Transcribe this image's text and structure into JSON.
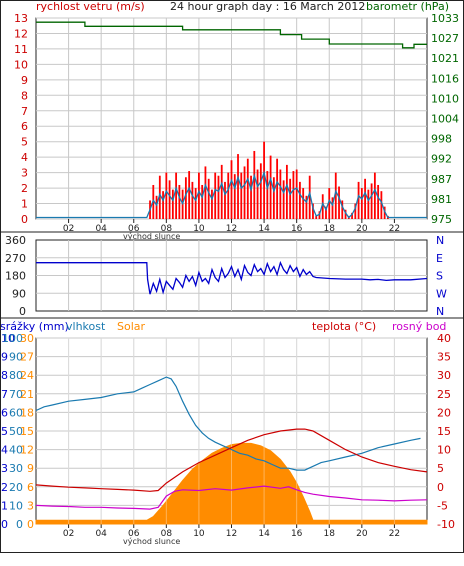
{
  "header": {
    "wind_speed_label": "rychlost vetru (m/s)",
    "graph_title": "24 hour graph day : 16 March 2012",
    "barometer_label": "barometr (hPa)"
  },
  "colors": {
    "wind_gust": "#ff0000",
    "wind_avg": "#1a7ab0",
    "pressure": "#006600",
    "direction": "#0000cc",
    "precip": "#0000cc",
    "humidity": "#1a7ab0",
    "solar": "#ff8c00",
    "temperature": "#cc0000",
    "dew_point": "#cc00cc",
    "axis_blue": "#0000cc",
    "axis_red": "#cc0000",
    "axis_green": "#006600"
  },
  "chart_data": [
    {
      "type": "line",
      "id": "wind_pressure",
      "title": "24 hour graph day : 16 March 2012",
      "x_tick_labels": [
        "02",
        "04",
        "06",
        "08",
        "10",
        "12",
        "14",
        "16",
        "18",
        "20",
        "22"
      ],
      "x_annotation": "východ slunce",
      "xlim": [
        0,
        24
      ],
      "y_left": {
        "label": "rychlost vetru (m/s)",
        "ticks": [
          "0",
          "1",
          "2",
          "3",
          "4",
          "5",
          "6",
          "7",
          "8",
          "9",
          "10",
          "11",
          "12",
          "13"
        ],
        "lim": [
          0,
          13
        ]
      },
      "y_right": {
        "label": "barometr (hPa)",
        "ticks": [
          "975",
          "981",
          "987",
          "992",
          "998",
          "1004",
          "1010",
          "1016",
          "1021",
          "1027",
          "1033"
        ],
        "lim": [
          975,
          1033
        ]
      },
      "series": [
        {
          "role": "wind_gust",
          "x": [
            6.8,
            7.0,
            7.2,
            7.4,
            7.6,
            7.8,
            8.0,
            8.2,
            8.4,
            8.6,
            8.8,
            9.0,
            9.2,
            9.4,
            9.6,
            9.8,
            10.0,
            10.2,
            10.4,
            10.6,
            10.8,
            11.0,
            11.2,
            11.4,
            11.6,
            11.8,
            12.0,
            12.2,
            12.4,
            12.6,
            12.8,
            13.0,
            13.2,
            13.4,
            13.6,
            13.8,
            14.0,
            14.2,
            14.4,
            14.6,
            14.8,
            15.0,
            15.2,
            15.4,
            15.6,
            15.8,
            16.0,
            16.2,
            16.4,
            16.6,
            16.8,
            17.0,
            17.2,
            17.4,
            17.6,
            17.8,
            18.0,
            18.2,
            18.4,
            18.6,
            18.8,
            19.0,
            19.2,
            19.4,
            19.6,
            19.8,
            20.0,
            20.2,
            20.4,
            20.6,
            20.8,
            21.0,
            21.2,
            21.4,
            21.6,
            21.8,
            22.0
          ],
          "y": [
            0,
            1.2,
            2.2,
            1.5,
            2.8,
            1.8,
            3.0,
            2.5,
            1.9,
            3.0,
            2.2,
            1.9,
            2.7,
            3.1,
            2.4,
            2.0,
            3.0,
            2.2,
            3.4,
            2.6,
            1.9,
            3.0,
            2.8,
            3.5,
            2.4,
            3.0,
            3.8,
            2.9,
            4.2,
            3.0,
            3.4,
            3.9,
            2.8,
            4.4,
            3.2,
            3.6,
            5.0,
            3.1,
            4.1,
            2.7,
            3.9,
            3.2,
            2.5,
            3.5,
            2.6,
            3.1,
            3.2,
            2.4,
            2.0,
            1.5,
            2.8,
            1.0,
            0.2,
            0.5,
            1.6,
            0.8,
            2.0,
            1.4,
            3.0,
            2.1,
            1.2,
            0.6,
            0.2,
            0.4,
            1.0,
            2.4,
            2.0,
            2.6,
            1.9,
            2.3,
            3.0,
            2.2,
            1.8,
            0.8,
            0.2,
            0,
            0
          ]
        },
        {
          "role": "wind_avg",
          "x": [
            0,
            6.8,
            7.0,
            7.2,
            7.4,
            7.6,
            7.8,
            8.0,
            8.2,
            8.4,
            8.6,
            8.8,
            9.0,
            9.2,
            9.4,
            9.6,
            9.8,
            10.0,
            10.2,
            10.4,
            10.6,
            10.8,
            11.0,
            11.2,
            11.4,
            11.6,
            11.8,
            12.0,
            12.2,
            12.4,
            12.6,
            12.8,
            13.0,
            13.2,
            13.4,
            13.6,
            13.8,
            14.0,
            14.2,
            14.4,
            14.6,
            14.8,
            15.0,
            15.2,
            15.4,
            15.6,
            15.8,
            16.0,
            16.2,
            16.4,
            16.6,
            16.8,
            17.0,
            17.2,
            17.4,
            17.6,
            17.8,
            18.0,
            18.2,
            18.4,
            18.6,
            18.8,
            19.0,
            19.2,
            19.4,
            19.6,
            19.8,
            20.0,
            20.2,
            20.4,
            20.6,
            20.8,
            21.0,
            21.2,
            21.4,
            21.6,
            21.8,
            22.0,
            24.0
          ],
          "y": [
            0.1,
            0.1,
            0.6,
            1.2,
            0.9,
            1.6,
            1.2,
            1.8,
            1.5,
            1.2,
            2.0,
            1.4,
            1.0,
            1.6,
            2.0,
            1.5,
            1.2,
            1.8,
            1.4,
            2.2,
            1.7,
            1.3,
            1.9,
            1.8,
            2.3,
            1.6,
            1.9,
            2.5,
            2.0,
            2.7,
            2.0,
            2.2,
            2.6,
            1.9,
            2.8,
            2.1,
            2.4,
            3.0,
            2.0,
            2.6,
            1.8,
            2.4,
            2.1,
            1.7,
            2.2,
            1.6,
            1.9,
            2.0,
            1.6,
            1.3,
            1.1,
            1.7,
            0.7,
            0.2,
            0.3,
            1.0,
            0.6,
            1.2,
            0.9,
            1.8,
            1.4,
            0.8,
            0.4,
            0.1,
            0.3,
            0.7,
            1.5,
            1.3,
            1.7,
            1.2,
            1.5,
            1.9,
            1.4,
            1.1,
            0.5,
            0.1,
            0.1,
            0.1,
            0.1
          ]
        },
        {
          "role": "pressure",
          "x": [
            0,
            3.0,
            3.0,
            9.0,
            9.0,
            15.0,
            15.0,
            16.3,
            16.3,
            18.0,
            18.0,
            22.5,
            22.5,
            23.2,
            23.2,
            24.0
          ],
          "y": [
            1031.8,
            1031.8,
            1030.6,
            1030.6,
            1029.6,
            1029.6,
            1028.2,
            1028.2,
            1026.9,
            1026.9,
            1025.5,
            1025.5,
            1024.4,
            1024.4,
            1025.4,
            1025.4
          ]
        }
      ]
    },
    {
      "type": "line",
      "id": "wind_direction",
      "xlim": [
        0,
        24
      ],
      "y_left": {
        "ticks": [
          "0",
          "90",
          "180",
          "270",
          "360"
        ],
        "lim": [
          0,
          360
        ]
      },
      "y_right": {
        "ticks": [
          "N",
          "W",
          "S",
          "E",
          "N"
        ]
      },
      "series": [
        {
          "role": "direction",
          "x": [
            0,
            6.8,
            6.85,
            7.0,
            7.2,
            7.4,
            7.6,
            7.8,
            8.0,
            8.2,
            8.4,
            8.6,
            8.8,
            9.0,
            9.2,
            9.4,
            9.6,
            9.8,
            10.0,
            10.2,
            10.4,
            10.6,
            10.8,
            11.0,
            11.2,
            11.4,
            11.6,
            11.8,
            12.0,
            12.2,
            12.4,
            12.6,
            12.8,
            13.0,
            13.2,
            13.4,
            13.6,
            13.8,
            14.0,
            14.2,
            14.4,
            14.6,
            14.8,
            15.0,
            15.2,
            15.4,
            15.6,
            15.8,
            16.0,
            16.2,
            16.4,
            16.6,
            16.8,
            17.0,
            17.2,
            18.0,
            19.0,
            20.0,
            20.5,
            21.0,
            21.5,
            22.0,
            23.0,
            24.0
          ],
          "y": [
            245,
            245,
            160,
            85,
            140,
            100,
            160,
            95,
            150,
            130,
            110,
            165,
            145,
            120,
            180,
            150,
            175,
            130,
            195,
            150,
            165,
            140,
            210,
            170,
            150,
            215,
            170,
            190,
            225,
            175,
            210,
            160,
            230,
            195,
            180,
            235,
            200,
            215,
            185,
            240,
            200,
            225,
            185,
            245,
            210,
            190,
            230,
            200,
            220,
            175,
            210,
            185,
            200,
            175,
            170,
            165,
            162,
            162,
            158,
            160,
            155,
            158,
            158,
            165
          ]
        }
      ]
    },
    {
      "type": "area",
      "id": "precip_humidity_solar_temp",
      "legend": [
        "srážky (mm)",
        "vlhkost",
        "Solar",
        "teplota (°C)",
        "rosný bod"
      ],
      "x_tick_labels": [
        "02",
        "04",
        "06",
        "08",
        "10",
        "12",
        "14",
        "16",
        "18",
        "20",
        "22"
      ],
      "x_annotation": "východ slunce",
      "xlim": [
        0,
        24
      ],
      "y_left_outer": {
        "ticks": [
          "0",
          "1",
          "2",
          "3",
          "4",
          "5",
          "6",
          "7",
          "8",
          "9",
          "10"
        ],
        "lim": [
          0,
          10
        ]
      },
      "y_left_mid": {
        "ticks": [
          "0",
          "10",
          "20",
          "30",
          "40",
          "50",
          "60",
          "70",
          "80",
          "90",
          "100"
        ],
        "lim": [
          0,
          100
        ]
      },
      "y_left_inner": {
        "ticks": [
          "0",
          "3",
          "6",
          "9",
          "12",
          "15",
          "18",
          "21",
          "24",
          "27",
          "30"
        ],
        "lim": [
          0,
          30
        ]
      },
      "y_right": {
        "ticks": [
          "-10",
          "-5",
          "0",
          "5",
          "10",
          "15",
          "20",
          "25",
          "30",
          "35",
          "40"
        ],
        "lim": [
          -10,
          40
        ]
      },
      "series": [
        {
          "role": "solar",
          "x": [
            0,
            6.8,
            7.2,
            7.8,
            8.4,
            9.0,
            9.6,
            10.2,
            10.8,
            11.4,
            12.0,
            12.6,
            13.2,
            13.8,
            14.4,
            15.0,
            15.6,
            16.0,
            16.4,
            16.8,
            17.0,
            24.0
          ],
          "y": [
            0.6,
            0.6,
            1.2,
            3.0,
            5.0,
            7.0,
            8.8,
            10.2,
            11.4,
            12.2,
            12.8,
            13.0,
            13.0,
            12.6,
            11.8,
            10.4,
            8.4,
            6.6,
            4.4,
            2.0,
            0.6,
            0.6
          ]
        },
        {
          "role": "humidity",
          "x": [
            0,
            0.5,
            1.0,
            2.0,
            3.0,
            4.0,
            5.0,
            6.0,
            6.5,
            7.0,
            7.5,
            8.0,
            8.3,
            8.6,
            9.0,
            9.4,
            9.8,
            10.2,
            10.6,
            11.0,
            11.5,
            12.0,
            12.5,
            13.0,
            13.5,
            14.0,
            14.5,
            15.0,
            15.5,
            16.0,
            16.5,
            17.0,
            17.5,
            18.0,
            19.0,
            20.0,
            21.0,
            22.0,
            23.0,
            23.6
          ],
          "y": [
            61,
            63,
            64,
            66,
            67,
            68,
            70,
            71,
            73,
            75,
            77,
            79,
            78,
            74,
            66,
            59,
            53,
            49,
            46,
            44,
            42,
            40,
            38,
            37,
            35,
            34,
            32,
            30,
            30,
            29,
            29,
            31,
            33,
            34,
            36,
            38,
            41,
            43,
            45,
            46
          ]
        },
        {
          "role": "temperature",
          "x": [
            0,
            1,
            2,
            3,
            4,
            5,
            6,
            7,
            7.5,
            8,
            9,
            10,
            11,
            12,
            13,
            14,
            15,
            16,
            16.5,
            17,
            18,
            19,
            20,
            21,
            22,
            23,
            24
          ],
          "y": [
            0.5,
            0.2,
            -0.1,
            -0.3,
            -0.5,
            -0.7,
            -0.9,
            -1.2,
            -1.0,
            1.0,
            4.0,
            6.5,
            8.5,
            10.5,
            12.5,
            14.0,
            15.0,
            15.5,
            15.5,
            15.0,
            12.5,
            10.0,
            8.0,
            6.5,
            5.5,
            4.6,
            4.0
          ]
        },
        {
          "role": "dew_point",
          "x": [
            0,
            1,
            2,
            3,
            4,
            5,
            6,
            7,
            7.5,
            8,
            8.5,
            9,
            10,
            11,
            12,
            13,
            14,
            15,
            15.5,
            16,
            16.5,
            17,
            18,
            19,
            20,
            21,
            22,
            23,
            24
          ],
          "y": [
            -5.0,
            -5.2,
            -5.3,
            -5.5,
            -5.5,
            -5.7,
            -5.8,
            -6.0,
            -5.5,
            -2.5,
            -1.2,
            -0.8,
            -1.0,
            -0.5,
            -0.9,
            -0.3,
            0.2,
            -0.4,
            0.0,
            -0.8,
            -1.5,
            -2.0,
            -2.6,
            -3.0,
            -3.5,
            -3.6,
            -3.8,
            -3.6,
            -3.5
          ]
        }
      ]
    }
  ]
}
